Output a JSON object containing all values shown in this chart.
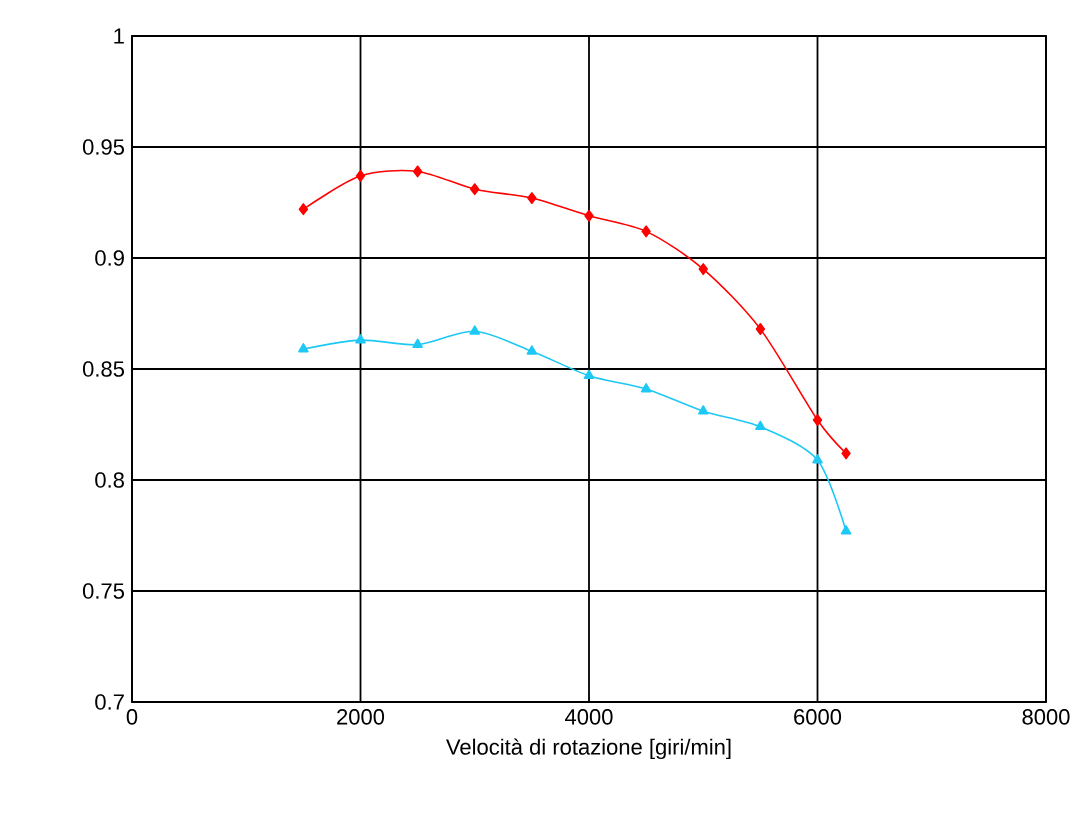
{
  "chart_data": {
    "type": "line",
    "xlabel": "Velocità di rotazione [giri/min]",
    "xlim": [
      0,
      8000
    ],
    "xticks": [
      0,
      2000,
      4000,
      6000,
      8000
    ],
    "ylim": [
      0.7,
      1
    ],
    "yticks": [
      0.7,
      0.75,
      0.8,
      0.85,
      0.9,
      0.95,
      1
    ],
    "grid": true,
    "x": [
      1500,
      2000,
      2500,
      3000,
      3500,
      4000,
      4500,
      5000,
      5500,
      6000,
      6250
    ],
    "series": [
      {
        "color": "#ff0000",
        "marker": "diamond",
        "values": [
          0.922,
          0.937,
          0.939,
          0.931,
          0.927,
          0.919,
          0.912,
          0.895,
          0.868,
          0.827,
          0.812
        ]
      },
      {
        "color": "#1ec8f5",
        "marker": "triangle",
        "values": [
          0.859,
          0.863,
          0.861,
          0.867,
          0.858,
          0.847,
          0.841,
          0.831,
          0.824,
          0.809,
          0.777
        ]
      }
    ]
  }
}
